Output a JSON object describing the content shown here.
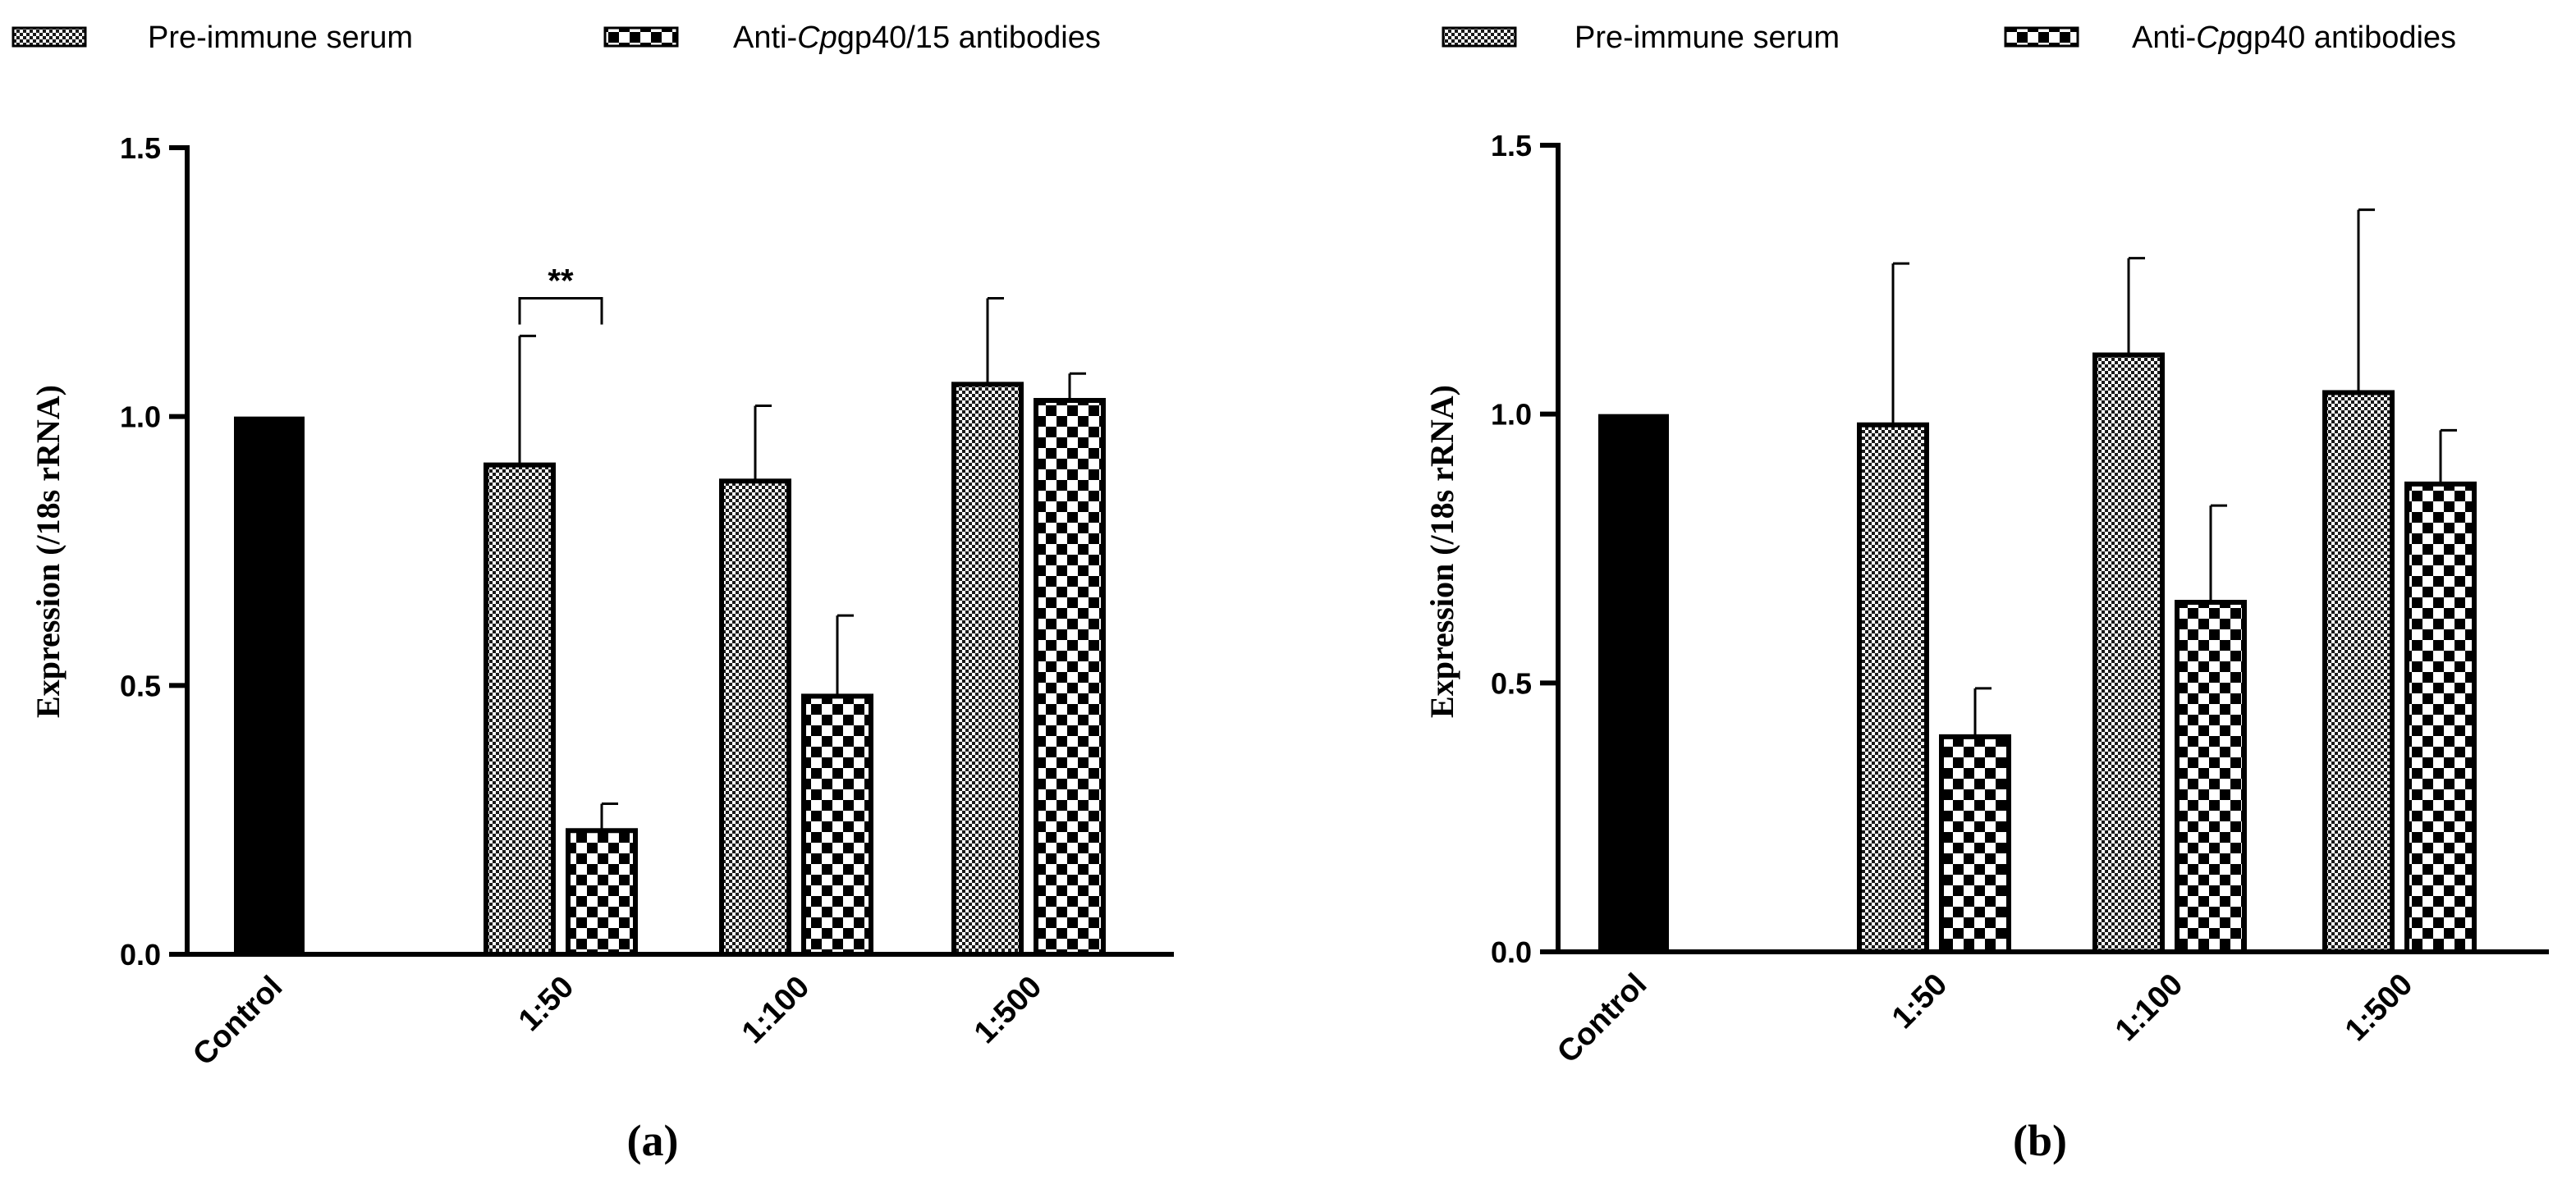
{
  "colors": {
    "axis": "#000000",
    "control_bar": "#000000",
    "background": "#ffffff"
  },
  "chart_data": [
    {
      "type": "bar",
      "panel_label": "(a)",
      "ylabel": "Expression (/18s rRNA)",
      "ylim": [
        0,
        1.5
      ],
      "yticks": [
        "0.0",
        "0.5",
        "1.0",
        "1.5"
      ],
      "categories": [
        "Control",
        "1:50",
        "1:100",
        "1:500"
      ],
      "legend": {
        "placement": "top",
        "entries": [
          {
            "prefix": "Pre-immune serum",
            "italic": "",
            "suffix": ""
          },
          {
            "prefix": "Anti-",
            "italic": "Cp",
            "suffix": "gp40/15 antibodies"
          }
        ]
      },
      "control": {
        "value": 1.0
      },
      "series": [
        {
          "values": [
            null,
            0.91,
            0.88,
            1.06
          ],
          "errors": [
            null,
            0.24,
            0.14,
            0.16
          ],
          "pattern": "fine-check"
        },
        {
          "values": [
            null,
            0.23,
            0.48,
            1.03
          ],
          "errors": [
            null,
            0.05,
            0.15,
            0.05
          ],
          "pattern": "coarse-check"
        }
      ],
      "annotations": [
        {
          "text": "**",
          "category_index": 1,
          "y": 1.22
        }
      ]
    },
    {
      "type": "bar",
      "panel_label": "(b)",
      "ylabel": "Expression (/18s rRNA)",
      "ylim": [
        0,
        1.5
      ],
      "yticks": [
        "0.0",
        "0.5",
        "1.0",
        "1.5"
      ],
      "categories": [
        "Control",
        "1:50",
        "1:100",
        "1:500"
      ],
      "legend": {
        "placement": "top",
        "entries": [
          {
            "prefix": "Pre-immune serum",
            "italic": "",
            "suffix": ""
          },
          {
            "prefix": "Anti-",
            "italic": "Cp",
            "suffix": "gp40 antibodies"
          }
        ]
      },
      "control": {
        "value": 1.0
      },
      "series": [
        {
          "values": [
            null,
            0.98,
            1.11,
            1.04
          ],
          "errors": [
            null,
            0.3,
            0.18,
            0.34
          ],
          "pattern": "fine-check"
        },
        {
          "values": [
            null,
            0.4,
            0.65,
            0.87
          ],
          "errors": [
            null,
            0.09,
            0.18,
            0.1
          ],
          "pattern": "coarse-check"
        }
      ],
      "annotations": []
    }
  ]
}
